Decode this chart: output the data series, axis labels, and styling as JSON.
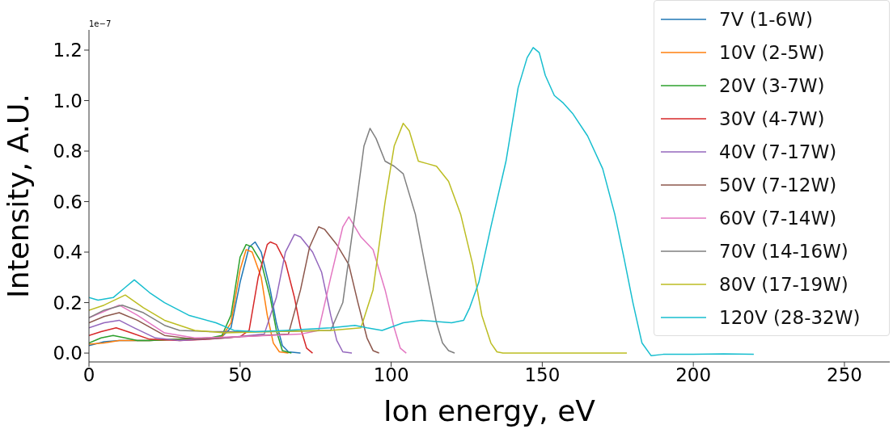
{
  "chart_data": {
    "type": "line",
    "xlabel": "Ion energy, eV",
    "ylabel": "Intensity, A.U.",
    "annotations": [
      "1e−7"
    ],
    "xlim": [
      0,
      265
    ],
    "xticks": [
      0,
      50,
      100,
      150,
      200,
      250
    ],
    "ylim": [
      -0.035,
      1.28
    ],
    "yticks": [
      {
        "value": 0,
        "label": "0.0"
      },
      {
        "value": 0.2,
        "label": "0.2"
      },
      {
        "value": 0.4,
        "label": "0.4"
      },
      {
        "value": 0.6,
        "label": "0.6"
      },
      {
        "value": 0.8,
        "label": "0.8"
      },
      {
        "value": 1.0,
        "label": "1.0"
      },
      {
        "value": 1.2,
        "label": "1.2"
      }
    ],
    "grid": false,
    "legend": "top right",
    "series": [
      {
        "name": "7V (1-6W)",
        "color": "#1f77b4",
        "x": [
          0,
          5,
          10,
          20,
          30,
          40,
          44,
          47,
          50,
          53,
          55,
          57,
          60,
          62,
          64,
          66,
          70
        ],
        "values": [
          0.03,
          0.045,
          0.05,
          0.05,
          0.055,
          0.06,
          0.065,
          0.1,
          0.28,
          0.42,
          0.44,
          0.4,
          0.25,
          0.12,
          0.03,
          0.005,
          0
        ]
      },
      {
        "name": "10V (2-5W)",
        "color": "#ff7f0e",
        "x": [
          0,
          5,
          10,
          20,
          30,
          40,
          44,
          47,
          50,
          52,
          54,
          57,
          59,
          61,
          63,
          66
        ],
        "values": [
          0.035,
          0.04,
          0.05,
          0.05,
          0.055,
          0.06,
          0.065,
          0.12,
          0.33,
          0.41,
          0.4,
          0.3,
          0.15,
          0.04,
          0.005,
          0
        ]
      },
      {
        "name": "20V (3-7W)",
        "color": "#2ca02c",
        "x": [
          0,
          4,
          8,
          12,
          16,
          20,
          30,
          40,
          44,
          47,
          50,
          52,
          54,
          57,
          60,
          62,
          64,
          67
        ],
        "values": [
          0.04,
          0.06,
          0.07,
          0.06,
          0.05,
          0.05,
          0.055,
          0.06,
          0.07,
          0.15,
          0.38,
          0.43,
          0.42,
          0.36,
          0.22,
          0.09,
          0.01,
          0
        ]
      },
      {
        "name": "30V (4-7W)",
        "color": "#d62728",
        "x": [
          0,
          4,
          9,
          14,
          20,
          30,
          40,
          50,
          53,
          56,
          59,
          60,
          62,
          65,
          68,
          70,
          72,
          74
        ],
        "values": [
          0.07,
          0.085,
          0.1,
          0.08,
          0.055,
          0.05,
          0.055,
          0.065,
          0.09,
          0.3,
          0.43,
          0.44,
          0.43,
          0.36,
          0.22,
          0.1,
          0.02,
          0
        ]
      },
      {
        "name": "40V (7-17W)",
        "color": "#9467bd",
        "x": [
          0,
          5,
          10,
          15,
          22,
          30,
          45,
          58,
          62,
          65,
          68,
          70,
          74,
          77,
          80,
          82,
          84,
          87
        ],
        "values": [
          0.1,
          0.12,
          0.13,
          0.1,
          0.06,
          0.05,
          0.06,
          0.075,
          0.22,
          0.4,
          0.47,
          0.46,
          0.4,
          0.32,
          0.15,
          0.05,
          0.005,
          0
        ]
      },
      {
        "name": "50V (7-12W)",
        "color": "#8c564b",
        "x": [
          0,
          5,
          10,
          16,
          25,
          35,
          50,
          66,
          70,
          73,
          76,
          78,
          82,
          86,
          89,
          92,
          94,
          96
        ],
        "values": [
          0.12,
          0.145,
          0.16,
          0.13,
          0.07,
          0.055,
          0.065,
          0.075,
          0.25,
          0.42,
          0.5,
          0.49,
          0.43,
          0.35,
          0.2,
          0.06,
          0.01,
          0
        ]
      },
      {
        "name": "60V (7-14W)",
        "color": "#e377c2",
        "x": [
          0,
          5,
          10,
          16,
          25,
          35,
          50,
          70,
          76,
          80,
          84,
          86,
          88,
          90,
          94,
          98,
          101,
          103,
          105
        ],
        "values": [
          0.14,
          0.165,
          0.19,
          0.15,
          0.08,
          0.06,
          0.065,
          0.075,
          0.09,
          0.3,
          0.5,
          0.54,
          0.5,
          0.46,
          0.41,
          0.25,
          0.1,
          0.02,
          0
        ]
      },
      {
        "name": "70V (14-16W)",
        "color": "#7f7f7f",
        "x": [
          0,
          5,
          11,
          18,
          25,
          30,
          40,
          60,
          80,
          84,
          88,
          91,
          93,
          95,
          98,
          101,
          104,
          108,
          112,
          115,
          117,
          119,
          121
        ],
        "values": [
          0.14,
          0.17,
          0.19,
          0.16,
          0.11,
          0.09,
          0.085,
          0.085,
          0.09,
          0.2,
          0.55,
          0.82,
          0.89,
          0.85,
          0.76,
          0.74,
          0.71,
          0.55,
          0.3,
          0.12,
          0.04,
          0.01,
          0
        ]
      },
      {
        "name": "80V (17-19W)",
        "color": "#bcbd22",
        "x": [
          0,
          5,
          12,
          18,
          25,
          35,
          45,
          60,
          80,
          90,
          94,
          98,
          101,
          104,
          106,
          109,
          112,
          115,
          119,
          123,
          127,
          130,
          133,
          135,
          137,
          150,
          178
        ],
        "values": [
          0.17,
          0.19,
          0.23,
          0.18,
          0.13,
          0.09,
          0.08,
          0.085,
          0.09,
          0.1,
          0.25,
          0.6,
          0.82,
          0.91,
          0.88,
          0.76,
          0.75,
          0.74,
          0.68,
          0.55,
          0.35,
          0.15,
          0.04,
          0.005,
          0,
          0,
          0
        ]
      },
      {
        "name": "120V (28-32W)",
        "color": "#17becf",
        "x": [
          0,
          3,
          8,
          12,
          15,
          20,
          25,
          33,
          42,
          48,
          55,
          65,
          80,
          88,
          92,
          97,
          104,
          110,
          120,
          124,
          126,
          129,
          133,
          138,
          142,
          145,
          147,
          149,
          151,
          154,
          157,
          160,
          165,
          170,
          174,
          177,
          180,
          183,
          186,
          190,
          200,
          210,
          220
        ],
        "values": [
          0.22,
          0.21,
          0.22,
          0.26,
          0.29,
          0.24,
          0.2,
          0.15,
          0.12,
          0.09,
          0.085,
          0.09,
          0.1,
          0.11,
          0.1,
          0.09,
          0.12,
          0.13,
          0.12,
          0.13,
          0.18,
          0.28,
          0.5,
          0.76,
          1.05,
          1.17,
          1.21,
          1.19,
          1.1,
          1.02,
          0.99,
          0.95,
          0.86,
          0.73,
          0.55,
          0.38,
          0.2,
          0.04,
          -0.01,
          -0.005,
          -0.005,
          -0.003,
          -0.005
        ]
      }
    ]
  }
}
